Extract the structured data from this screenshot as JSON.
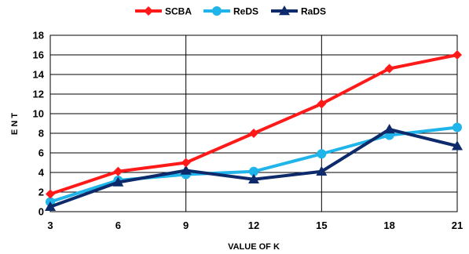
{
  "chart_data": {
    "type": "line",
    "title": "",
    "xlabel": "VALUE OF K",
    "ylabel": "E N T",
    "x": [
      3,
      6,
      9,
      12,
      15,
      18,
      21
    ],
    "x_tick_labels": [
      "3",
      "6",
      "9",
      "12",
      "15",
      "18",
      "21"
    ],
    "ylim": [
      0,
      18
    ],
    "y_tick_labels": [
      "0",
      "2",
      "4",
      "6",
      "8",
      "10",
      "12",
      "14",
      "16",
      "18"
    ],
    "grid": true,
    "legend_position": "top",
    "series": [
      {
        "name": "SCBA",
        "color": "#ff1a1a",
        "marker": "diamond",
        "values": [
          1.8,
          4.1,
          5.0,
          8.0,
          11.0,
          14.6,
          16.0
        ]
      },
      {
        "name": "ReDS",
        "color": "#1fb4ea",
        "marker": "circle",
        "values": [
          1.0,
          3.2,
          3.8,
          4.1,
          5.9,
          7.8,
          8.6
        ]
      },
      {
        "name": "RaDS",
        "color": "#0d2a6b",
        "marker": "triangle",
        "values": [
          0.5,
          3.0,
          4.2,
          3.3,
          4.1,
          8.4,
          6.7
        ]
      }
    ]
  }
}
